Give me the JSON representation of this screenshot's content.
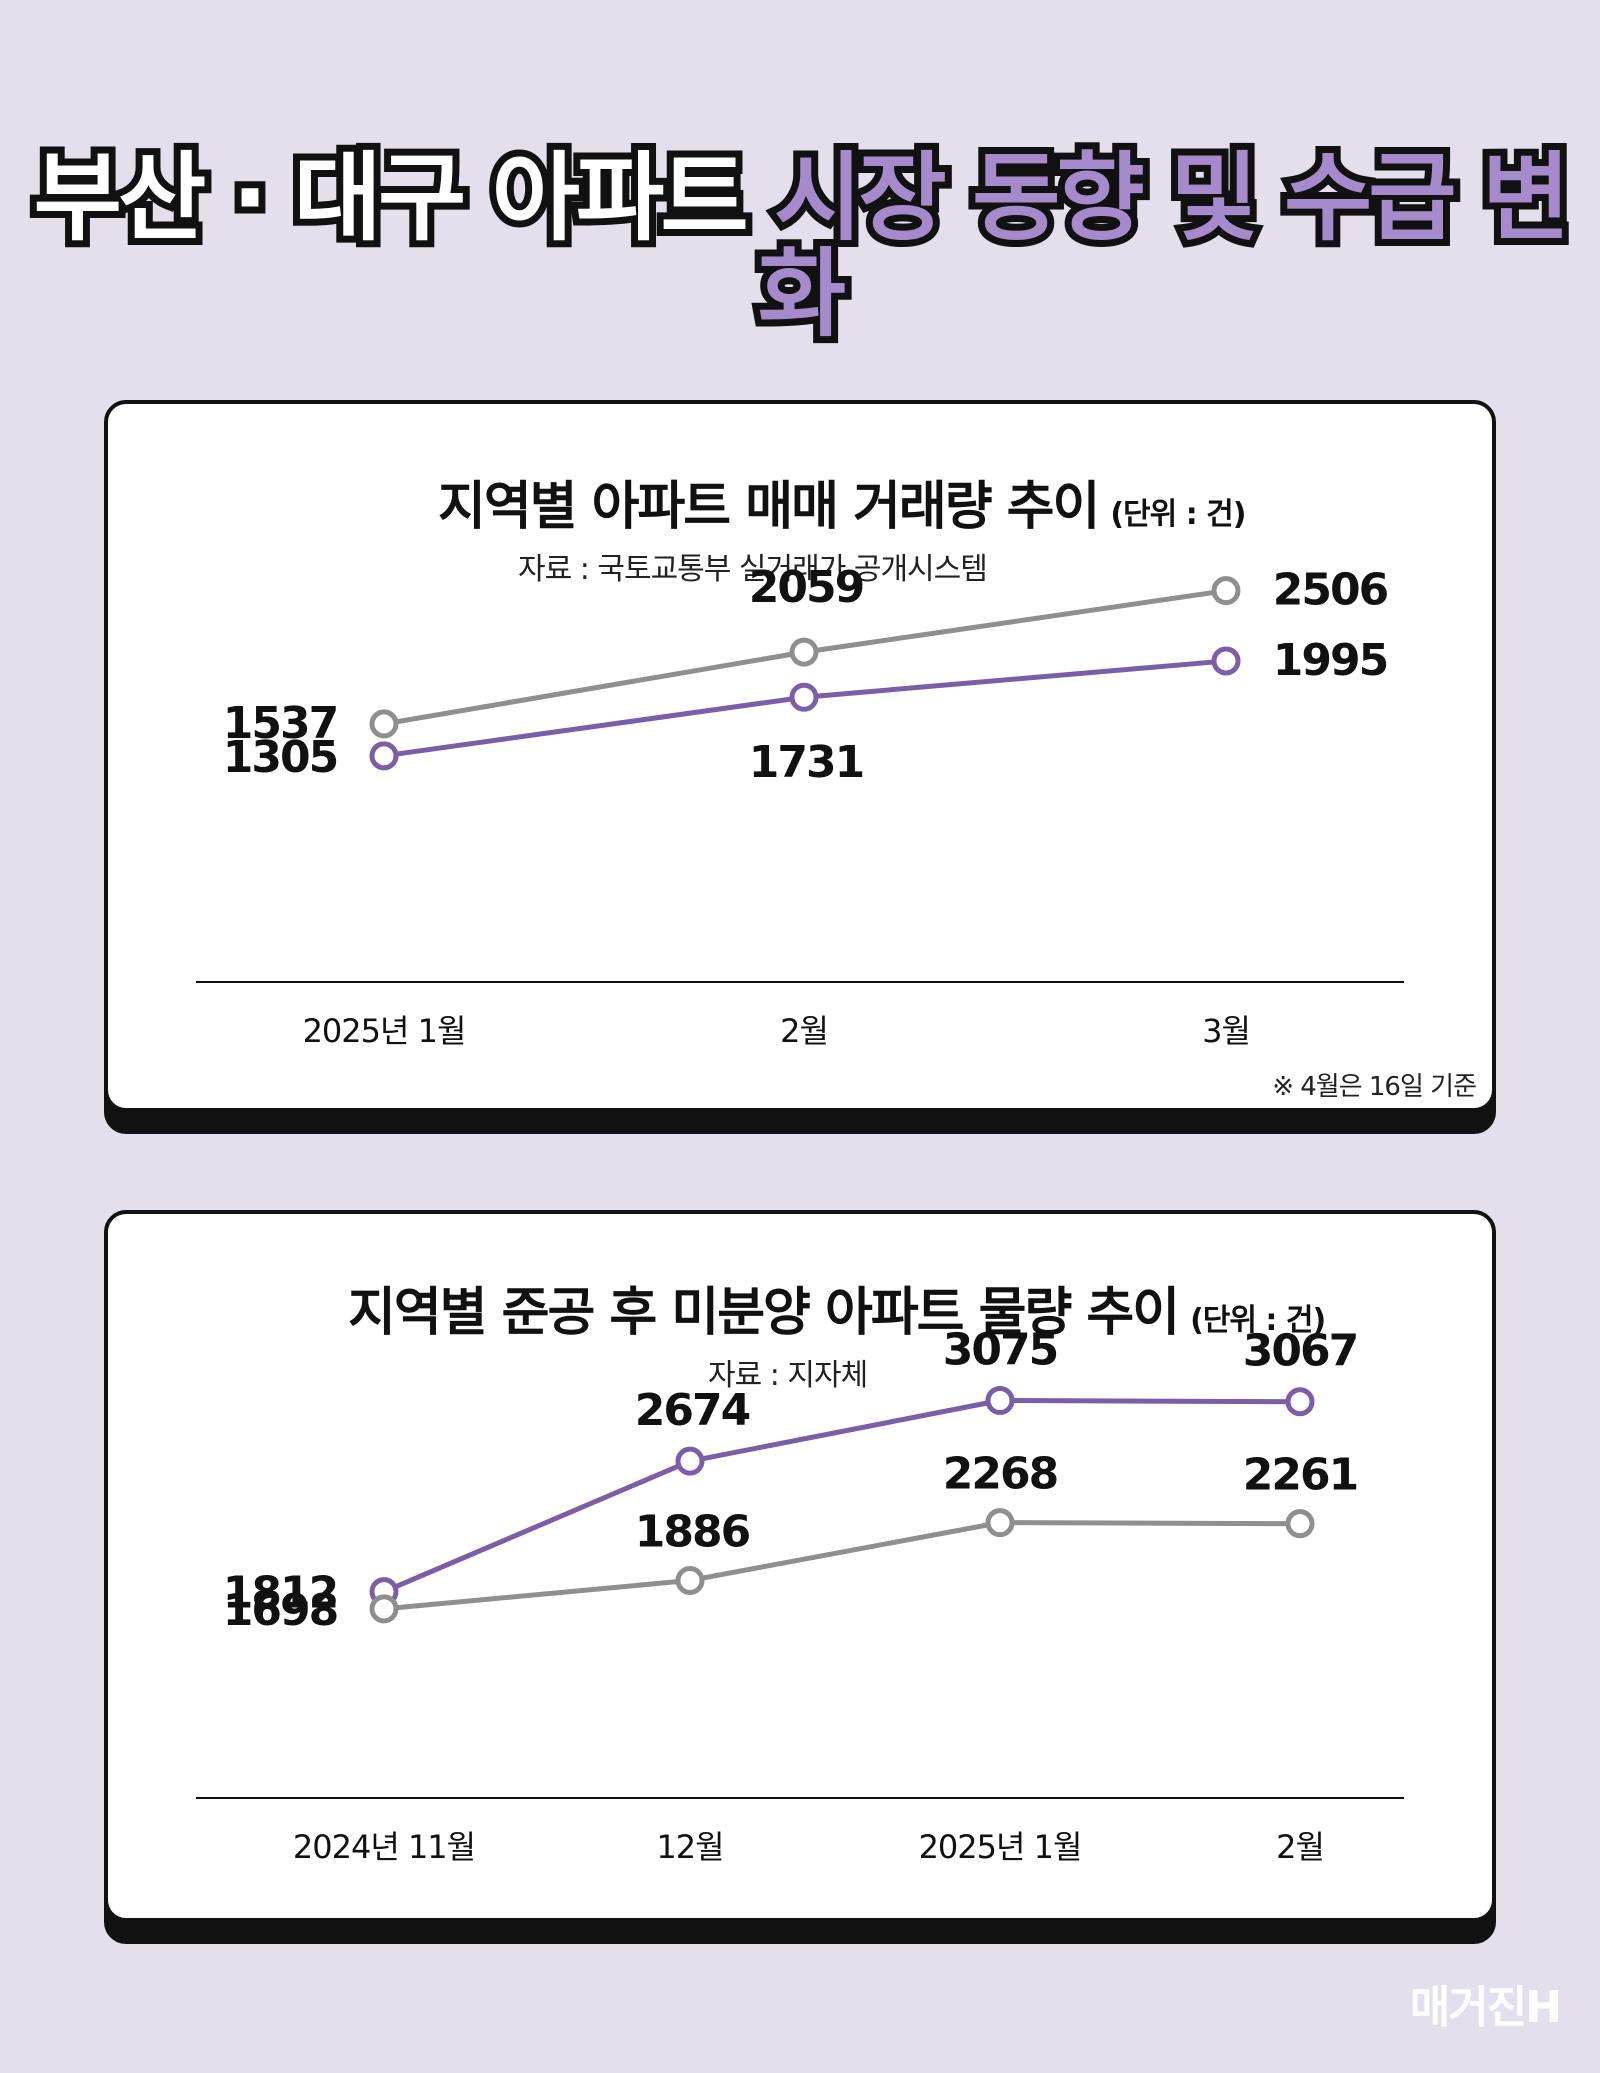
{
  "headline": {
    "part1": "부산 · 대구 아파트",
    "part2": "시장 동향 및 수급 변화"
  },
  "colors": {
    "background": "#e5dfec",
    "purple": "#7b5ea7",
    "gray": "#8f8f8f",
    "headline_accent": "#a58bcb"
  },
  "chart1": {
    "title": "지역별 아파트 매매 거래량 추이",
    "unit": "(단위 : 건)",
    "source": "자료 : 국토교통부 실거래가 공개시스템",
    "footnote": "※ 4월은 16일 기준"
  },
  "chart2": {
    "title": "지역별 준공 후 미분양 아파트 물량 추이",
    "unit": "(단위 : 건)",
    "source": "자료 : 지자체"
  },
  "watermark": "매거진H",
  "chart_data": [
    {
      "type": "line",
      "title": "지역별 아파트 매매 거래량 추이",
      "unit": "(단위 : 건)",
      "categories": [
        "2025년 1월",
        "2월",
        "3월"
      ],
      "series": [
        {
          "color": "#8f8f8f",
          "values": [
            1537,
            2059,
            2506
          ]
        },
        {
          "color": "#7b5ea7",
          "values": [
            1305,
            1731,
            1995
          ]
        }
      ],
      "ylim": [
        1100,
        2700
      ],
      "grid": false,
      "legend": "none"
    },
    {
      "type": "line",
      "title": "지역별 준공 후 미분양 아파트 물량 추이",
      "unit": "(단위 : 건)",
      "categories": [
        "2024년 11월",
        "12월",
        "2025년 1월",
        "2월"
      ],
      "series": [
        {
          "color": "#7b5ea7",
          "values": [
            1812,
            2674,
            3075,
            3067
          ]
        },
        {
          "color": "#8f8f8f",
          "values": [
            1698,
            1886,
            2268,
            2261
          ]
        }
      ],
      "ylim": [
        1400,
        3250
      ],
      "grid": false,
      "legend": "none"
    }
  ]
}
